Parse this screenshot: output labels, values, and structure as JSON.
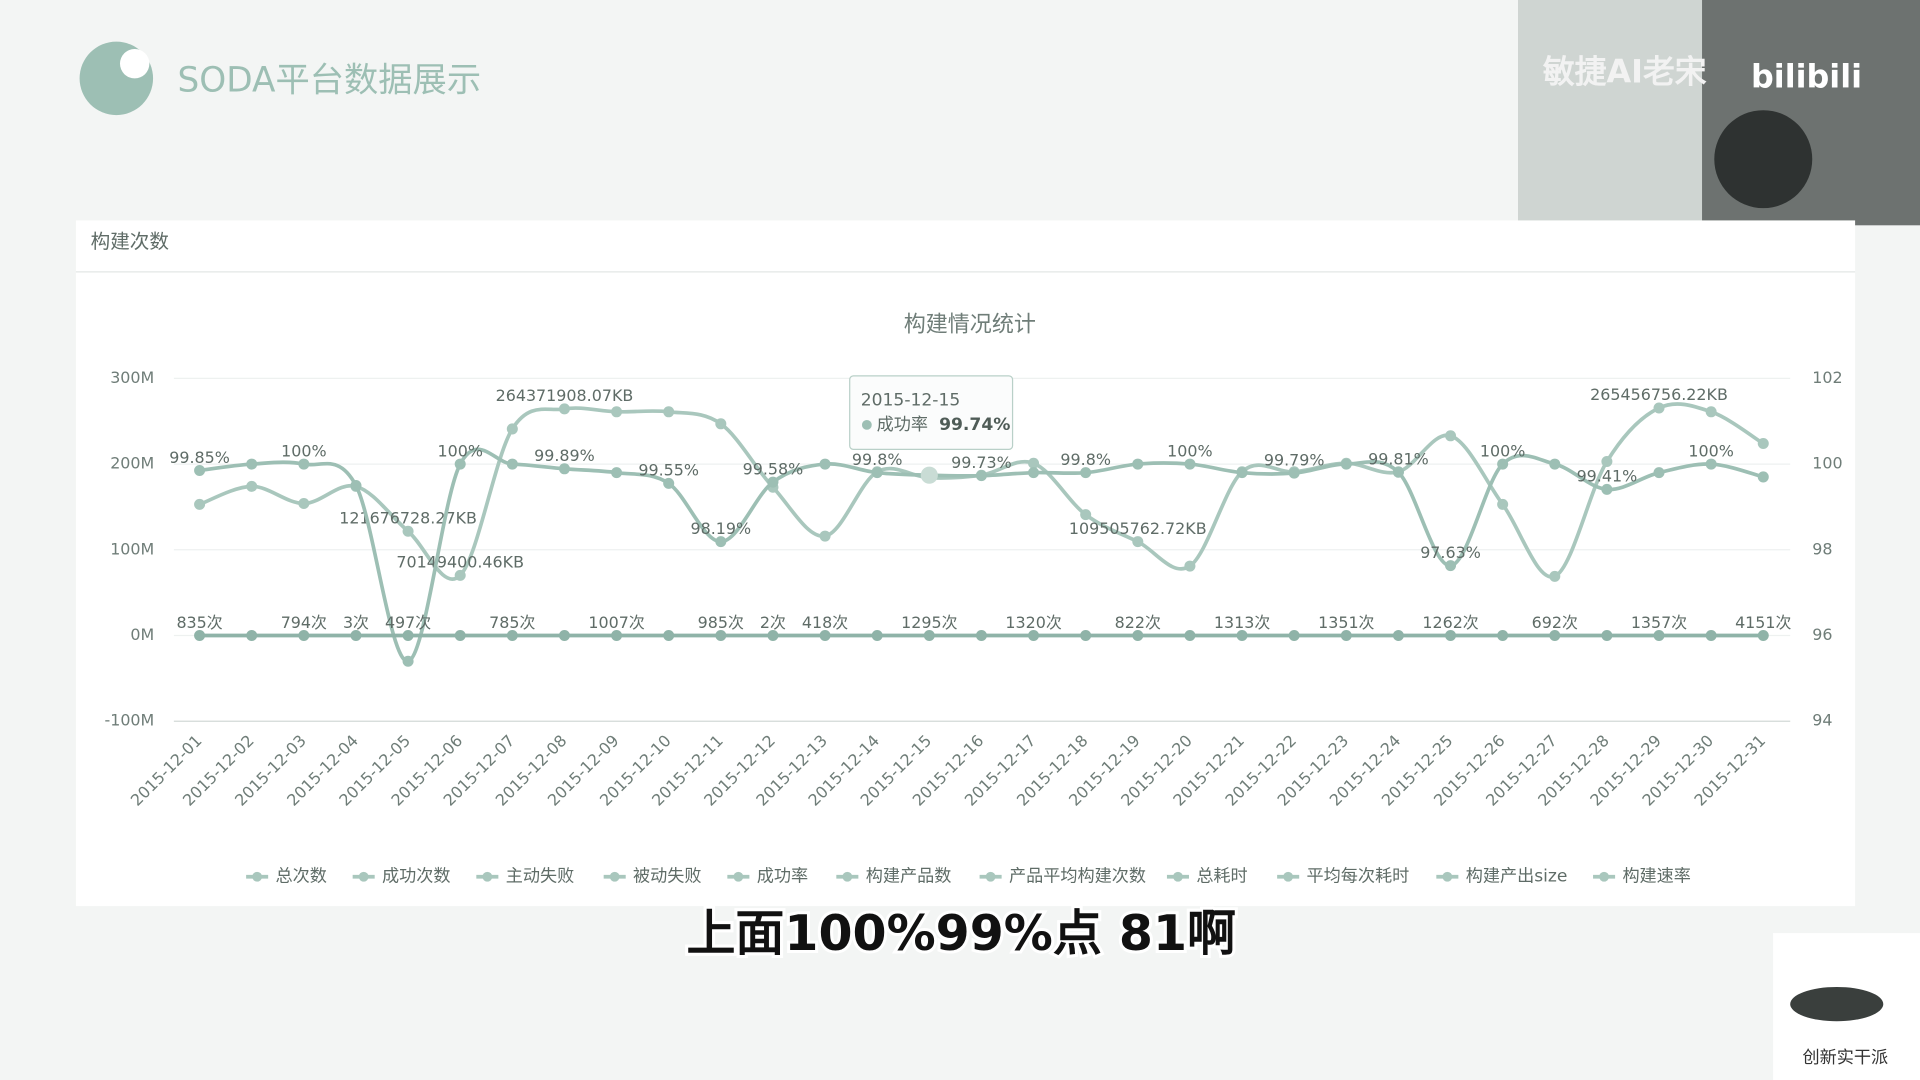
{
  "header": {
    "title": "SODA平台数据展示"
  },
  "overlay": {
    "name": "敏捷AI老宋",
    "logo": "bilibili"
  },
  "panel": {
    "title": "构建次数"
  },
  "caption": "上面100%99%点 81啊",
  "watermark": "创新实干派",
  "chart_data": {
    "type": "line",
    "title": "构建情况统计",
    "categories": [
      "2015-12-01",
      "2015-12-02",
      "2015-12-03",
      "2015-12-04",
      "2015-12-05",
      "2015-12-06",
      "2015-12-07",
      "2015-12-08",
      "2015-12-09",
      "2015-12-10",
      "2015-12-11",
      "2015-12-12",
      "2015-12-13",
      "2015-12-14",
      "2015-12-15",
      "2015-12-16",
      "2015-12-17",
      "2015-12-18",
      "2015-12-19",
      "2015-12-20",
      "2015-12-21",
      "2015-12-22",
      "2015-12-23",
      "2015-12-24",
      "2015-12-25",
      "2015-12-26",
      "2015-12-27",
      "2015-12-28",
      "2015-12-29",
      "2015-12-30",
      "2015-12-31"
    ],
    "ylim": [
      -100000000,
      300000000
    ],
    "yticks": [
      {
        "value": -100000000,
        "label": "-100M"
      },
      {
        "value": 0,
        "label": "0M"
      },
      {
        "value": 100000000,
        "label": "100M"
      },
      {
        "value": 200000000,
        "label": "200M"
      },
      {
        "value": 300000000,
        "label": "300M"
      }
    ],
    "y2lim": [
      94,
      102
    ],
    "y2ticks": [
      94,
      96,
      98,
      100,
      102
    ],
    "legend": [
      "总次数",
      "成功次数",
      "主动失败",
      "被动失败",
      "成功率",
      "构建产品数",
      "产品平均构建次数",
      "总耗时",
      "平均每次耗时",
      "构建产出size",
      "构建速率"
    ],
    "series": [
      {
        "name": "构建产出size",
        "color": "#a9c7bd",
        "values": [
          153000000,
          174000000,
          154000000,
          174000000,
          121676728.27,
          70149400.46,
          241000000,
          264371908.07,
          261000000,
          261000000,
          247000000,
          173000000,
          116000000,
          191000000,
          184000000,
          187000000,
          201000000,
          141000000,
          109505762.72,
          81000000,
          191000000,
          191000000,
          201000000,
          191000000,
          233000000,
          153000000,
          69000000,
          203000000,
          265456756.22,
          261000000,
          224000000
        ],
        "value_labels": [
          null,
          null,
          null,
          null,
          "121676728.27KB",
          "70149400.46KB",
          null,
          "264371908.07KB",
          null,
          null,
          null,
          null,
          null,
          null,
          null,
          null,
          null,
          null,
          "109505762.72KB",
          null,
          null,
          null,
          null,
          null,
          null,
          null,
          null,
          null,
          "265456756.22KB",
          null,
          null
        ]
      },
      {
        "name": "成功率",
        "color": "#9dbfb4",
        "axis": "y2",
        "values": [
          99.85,
          100,
          100,
          99.5,
          95.4,
          100,
          100,
          99.89,
          99.8,
          99.55,
          98.19,
          99.58,
          100,
          99.8,
          99.74,
          99.73,
          99.8,
          99.8,
          100,
          100,
          99.8,
          99.79,
          100,
          99.81,
          97.63,
          100,
          100,
          99.41,
          99.8,
          100,
          99.7
        ],
        "value_labels": [
          "99.85%",
          null,
          "100%",
          null,
          null,
          "100%",
          null,
          "99.89%",
          null,
          "99.55%",
          "98.19%",
          "99.58%",
          null,
          "99.8%",
          null,
          "99.73%",
          null,
          "99.8%",
          null,
          "100%",
          null,
          "99.79%",
          null,
          "99.81%",
          "97.63%",
          "100%",
          null,
          "99.41%",
          null,
          "100%",
          null
        ]
      },
      {
        "name": "总次数",
        "color": "#8fb3a8",
        "values": [
          835,
          800,
          794,
          3,
          497,
          790,
          785,
          900,
          1007,
          990,
          985,
          2,
          418,
          1200,
          1295,
          1300,
          1320,
          1000,
          822,
          1100,
          1313,
          1330,
          1351,
          1300,
          1262,
          1000,
          692,
          1000,
          1357,
          2000,
          4151
        ],
        "value_labels": [
          "835次",
          null,
          "794次",
          "3次",
          "497次",
          null,
          "785次",
          null,
          "1007次",
          null,
          "985次",
          "2次",
          "418次",
          null,
          "1295次",
          null,
          "1320次",
          null,
          "822次",
          null,
          "1313次",
          null,
          "1351次",
          null,
          "1262次",
          null,
          "692次",
          null,
          "1357次",
          null,
          "4151次"
        ]
      }
    ],
    "tooltip": {
      "index": 14,
      "title": "2015-12-15",
      "series": "成功率",
      "value_label": "99.74%"
    }
  }
}
